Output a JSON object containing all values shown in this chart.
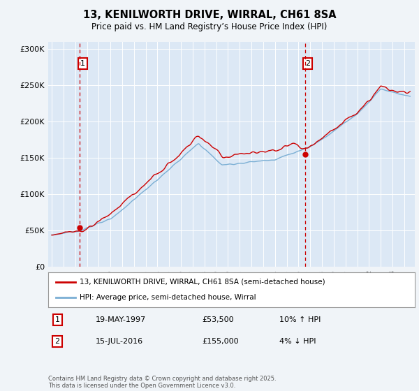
{
  "title_line1": "13, KENILWORTH DRIVE, WIRRAL, CH61 8SA",
  "title_line2": "Price paid vs. HM Land Registry’s House Price Index (HPI)",
  "ylim": [
    0,
    310000
  ],
  "yticks": [
    0,
    50000,
    100000,
    150000,
    200000,
    250000,
    300000
  ],
  "ytick_labels": [
    "£0",
    "£50K",
    "£100K",
    "£150K",
    "£200K",
    "£250K",
    "£300K"
  ],
  "hpi_color": "#7bafd4",
  "price_color": "#cc0000",
  "dot_color": "#cc0000",
  "vline_color": "#cc0000",
  "legend_line1": "13, KENILWORTH DRIVE, WIRRAL, CH61 8SA (semi-detached house)",
  "legend_line2": "HPI: Average price, semi-detached house, Wirral",
  "sale1_label": "1",
  "sale1_date": "19-MAY-1997",
  "sale1_price": "£53,500",
  "sale1_hpi": "10% ↑ HPI",
  "sale1_year": 1997.38,
  "sale1_value": 53500,
  "sale2_label": "2",
  "sale2_date": "15-JUL-2016",
  "sale2_price": "£155,000",
  "sale2_hpi": "4% ↓ HPI",
  "sale2_year": 2016.54,
  "sale2_value": 155000,
  "footer": "Contains HM Land Registry data © Crown copyright and database right 2025.\nThis data is licensed under the Open Government Licence v3.0.",
  "bg_color": "#f0f4f8",
  "plot_bg_color": "#dce8f5"
}
